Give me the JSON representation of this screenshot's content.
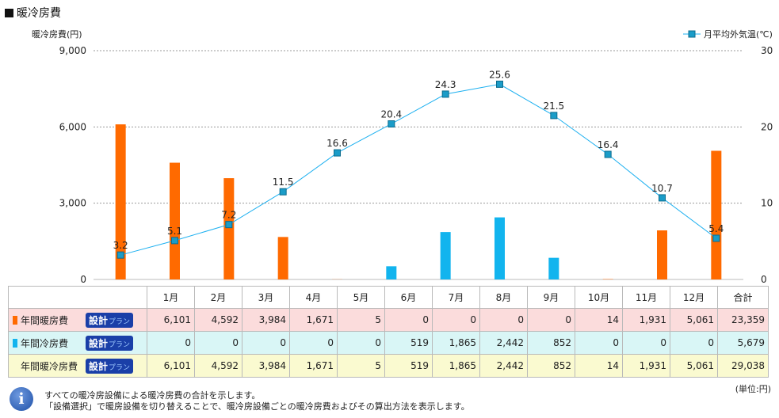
{
  "page_title": "暖冷房費",
  "chart_data": {
    "type": "bar+line",
    "ylabel_left": "暖冷房費(円)",
    "ylim_left": [
      0,
      9000
    ],
    "yticks_left": [
      "9,000",
      "6,000",
      "3,000",
      "0"
    ],
    "ylim_right": [
      0,
      30
    ],
    "yticks_right": [
      "30",
      "20",
      "10",
      "0"
    ],
    "legend": "月平均外気温(℃)",
    "categories": [
      "1月",
      "2月",
      "3月",
      "4月",
      "5月",
      "6月",
      "7月",
      "8月",
      "9月",
      "10月",
      "11月",
      "12月"
    ],
    "series": [
      {
        "name": "年間暖房費",
        "type": "bar",
        "color": "#ff6a00",
        "values": [
          6101,
          4592,
          3984,
          1671,
          5,
          0,
          0,
          0,
          0,
          14,
          1931,
          5061
        ]
      },
      {
        "name": "年間冷房費",
        "type": "bar",
        "color": "#12b4ee",
        "values": [
          0,
          0,
          0,
          0,
          0,
          519,
          1865,
          2442,
          852,
          0,
          0,
          0
        ]
      },
      {
        "name": "月平均外気温(℃)",
        "type": "line",
        "axis": "right",
        "color": "#1db0f0",
        "values": [
          3.2,
          5.1,
          7.2,
          11.5,
          16.6,
          20.4,
          24.3,
          25.6,
          21.5,
          16.4,
          10.7,
          5.4
        ],
        "labels": [
          "3.2",
          "5.1",
          "7.2",
          "11.5",
          "16.6",
          "20.4",
          "24.3",
          "25.6",
          "21.5",
          "16.4",
          "10.7",
          "5.4"
        ]
      }
    ],
    "grid": true,
    "legend_position": "top-right"
  },
  "table": {
    "headers": [
      "1月",
      "2月",
      "3月",
      "4月",
      "5月",
      "6月",
      "7月",
      "8月",
      "9月",
      "10月",
      "11月",
      "12月",
      "合計"
    ],
    "plan_label": "設計",
    "plan_small": "プラン",
    "rows": [
      {
        "label": "年間暖房費",
        "color": "#ff6a00",
        "cells": [
          "6,101",
          "4,592",
          "3,984",
          "1,671",
          "5",
          "0",
          "0",
          "0",
          "0",
          "14",
          "1,931",
          "5,061",
          "23,359"
        ]
      },
      {
        "label": "年間冷房費",
        "color": "#12b4ee",
        "cells": [
          "0",
          "0",
          "0",
          "0",
          "0",
          "519",
          "1,865",
          "2,442",
          "852",
          "0",
          "0",
          "0",
          "5,679"
        ]
      },
      {
        "label": "年間暖冷房費",
        "color": "",
        "cells": [
          "6,101",
          "4,592",
          "3,984",
          "1,671",
          "5",
          "519",
          "1,865",
          "2,442",
          "852",
          "14",
          "1,931",
          "5,061",
          "29,038"
        ]
      }
    ]
  },
  "notes": {
    "line1": "すべての暖冷房設備による暖冷房費の合計を示します。",
    "line2": "「設備選択」で暖房設備を切り替えることで、暖冷房設備ごとの暖冷房費およびその算出方法を表示します。",
    "unit": "(単位:円)"
  }
}
